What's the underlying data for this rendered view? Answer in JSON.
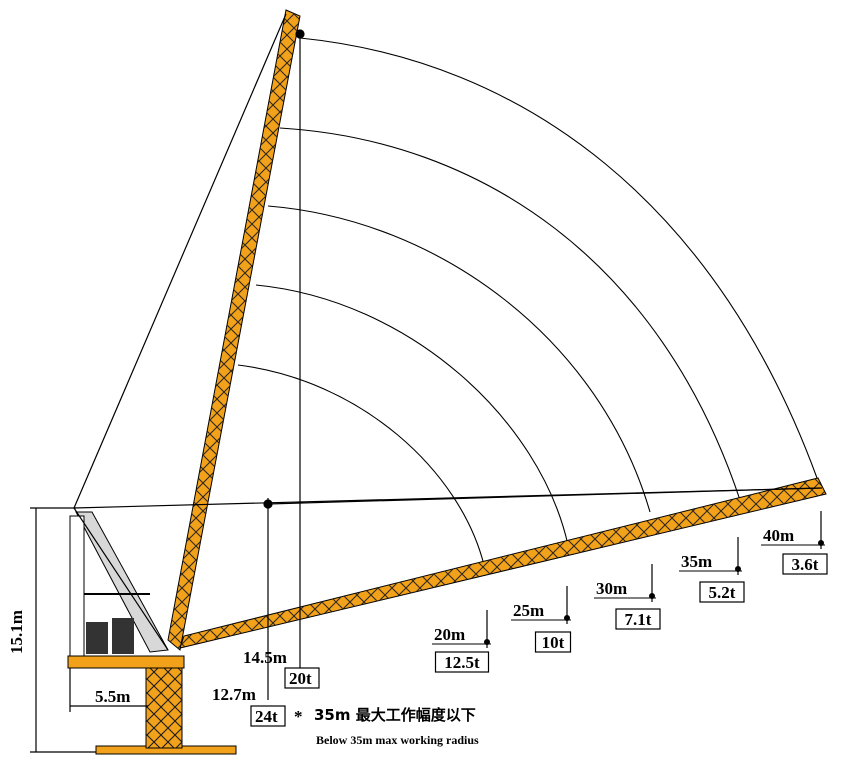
{
  "colors": {
    "boom": "#f2a21a",
    "lattice": "#1a1a1a",
    "line": "#000000"
  },
  "dimensions": {
    "height": "15.1m",
    "tail_radius": "5.5m",
    "min_radius_a": "12.7m",
    "min_radius_b": "14.5m"
  },
  "capacities": {
    "cap_24": "24t",
    "cap_20": "20t",
    "points": [
      {
        "radius": "20m",
        "load": "12.5t"
      },
      {
        "radius": "25m",
        "load": "10t"
      },
      {
        "radius": "30m",
        "load": "7.1t"
      },
      {
        "radius": "35m",
        "load": "5.2t"
      },
      {
        "radius": "40m",
        "load": "3.6t"
      }
    ]
  },
  "note": {
    "asterisk": "*",
    "chinese": "35m 最大工作幅度以下",
    "english": "Below 35m max working radius"
  }
}
